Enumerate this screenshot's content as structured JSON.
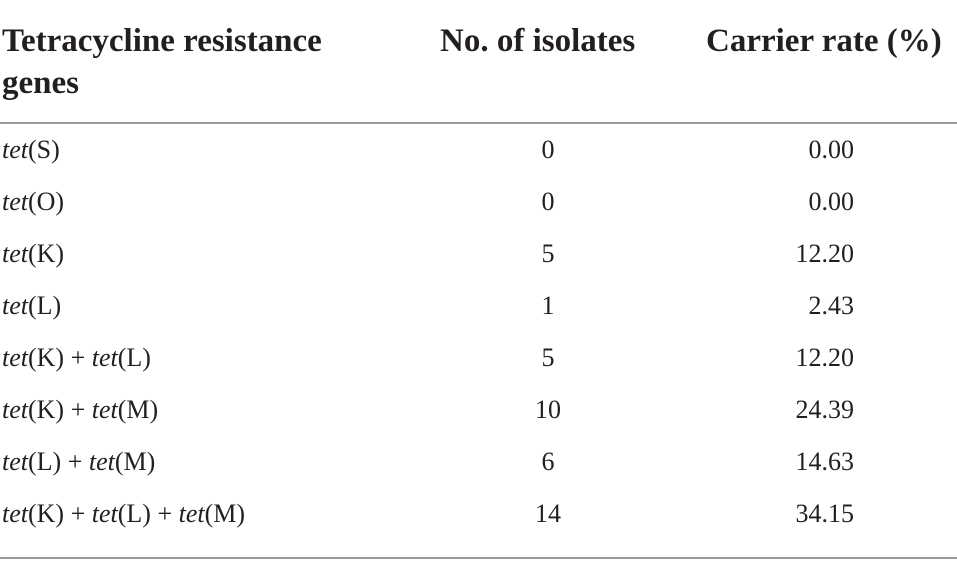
{
  "table": {
    "header": [
      "Tetracycline resistance genes",
      "No. of isolates",
      "Carrier rate (%)"
    ],
    "rows": [
      [
        [
          {
            "text": "tet",
            "italic": true
          },
          {
            "text": "(S)"
          }
        ],
        0,
        "0.00"
      ],
      [
        [
          {
            "text": "tet",
            "italic": true
          },
          {
            "text": "(O)"
          }
        ],
        0,
        "0.00"
      ],
      [
        [
          {
            "text": "tet",
            "italic": true
          },
          {
            "text": "(K)"
          }
        ],
        5,
        "12.20"
      ],
      [
        [
          {
            "text": "tet",
            "italic": true
          },
          {
            "text": "(L)"
          }
        ],
        1,
        "2.43"
      ],
      [
        [
          {
            "text": "tet",
            "italic": true
          },
          {
            "text": "(K) + "
          },
          {
            "text": "tet",
            "italic": true
          },
          {
            "text": "(L)"
          }
        ],
        5,
        "12.20"
      ],
      [
        [
          {
            "text": "tet",
            "italic": true
          },
          {
            "text": "(K) + "
          },
          {
            "text": "tet",
            "italic": true
          },
          {
            "text": "(M)"
          }
        ],
        10,
        "24.39"
      ],
      [
        [
          {
            "text": "tet",
            "italic": true
          },
          {
            "text": "(L) + "
          },
          {
            "text": "tet",
            "italic": true
          },
          {
            "text": "(M)"
          }
        ],
        6,
        "14.63"
      ],
      [
        [
          {
            "text": "tet",
            "italic": true
          },
          {
            "text": "(K) + "
          },
          {
            "text": "tet",
            "italic": true
          },
          {
            "text": "(L) + "
          },
          {
            "text": "tet",
            "italic": true
          },
          {
            "text": "(M)"
          }
        ],
        14,
        "34.15"
      ]
    ]
  }
}
